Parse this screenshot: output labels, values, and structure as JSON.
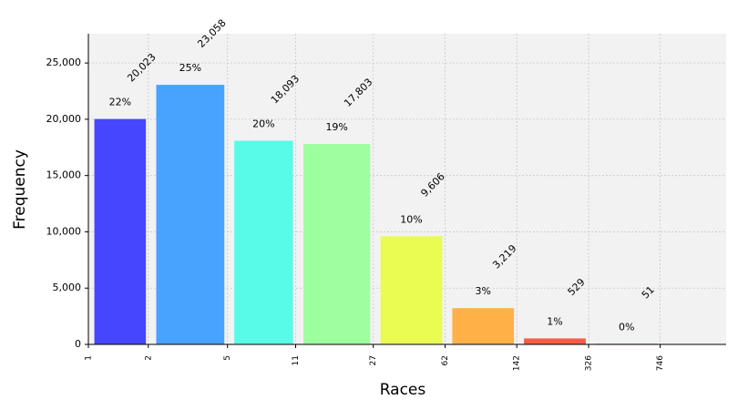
{
  "chart_data": {
    "type": "histogram",
    "xlabel": "Races",
    "ylabel": "Frequency",
    "bins": [
      1,
      2,
      5,
      11,
      27,
      62,
      142,
      326,
      746
    ],
    "values": [
      20023,
      23058,
      18093,
      17803,
      9606,
      3219,
      529,
      51
    ],
    "value_labels": [
      "20,023",
      "23,058",
      "18,093",
      "17,803",
      "9,606",
      "3,219",
      "529",
      "51"
    ],
    "percentage_labels": [
      "22%",
      "25%",
      "20%",
      "19%",
      "10%",
      "3%",
      "1%",
      "0%"
    ],
    "colors": [
      "#4646ff",
      "#47a3ff",
      "#57fbe8",
      "#9dff9d",
      "#e8fc52",
      "#ffb047",
      "#f65c45",
      "#b53a2a"
    ],
    "xscale": "log",
    "xlim": [
      1,
      1600
    ],
    "xticks": [
      1,
      2,
      5,
      11,
      27,
      62,
      142,
      326,
      746
    ],
    "ylim": [
      0,
      27600
    ],
    "yticks": [
      0,
      {
        "value": 5000,
        "label": "5,000"
      },
      {
        "value": 10000,
        "label": "10,000"
      },
      {
        "value": 15000,
        "label": "15,000"
      },
      {
        "value": 20000,
        "label": "20,000"
      },
      {
        "value": 25000,
        "label": "25,000"
      }
    ],
    "grid": true
  }
}
